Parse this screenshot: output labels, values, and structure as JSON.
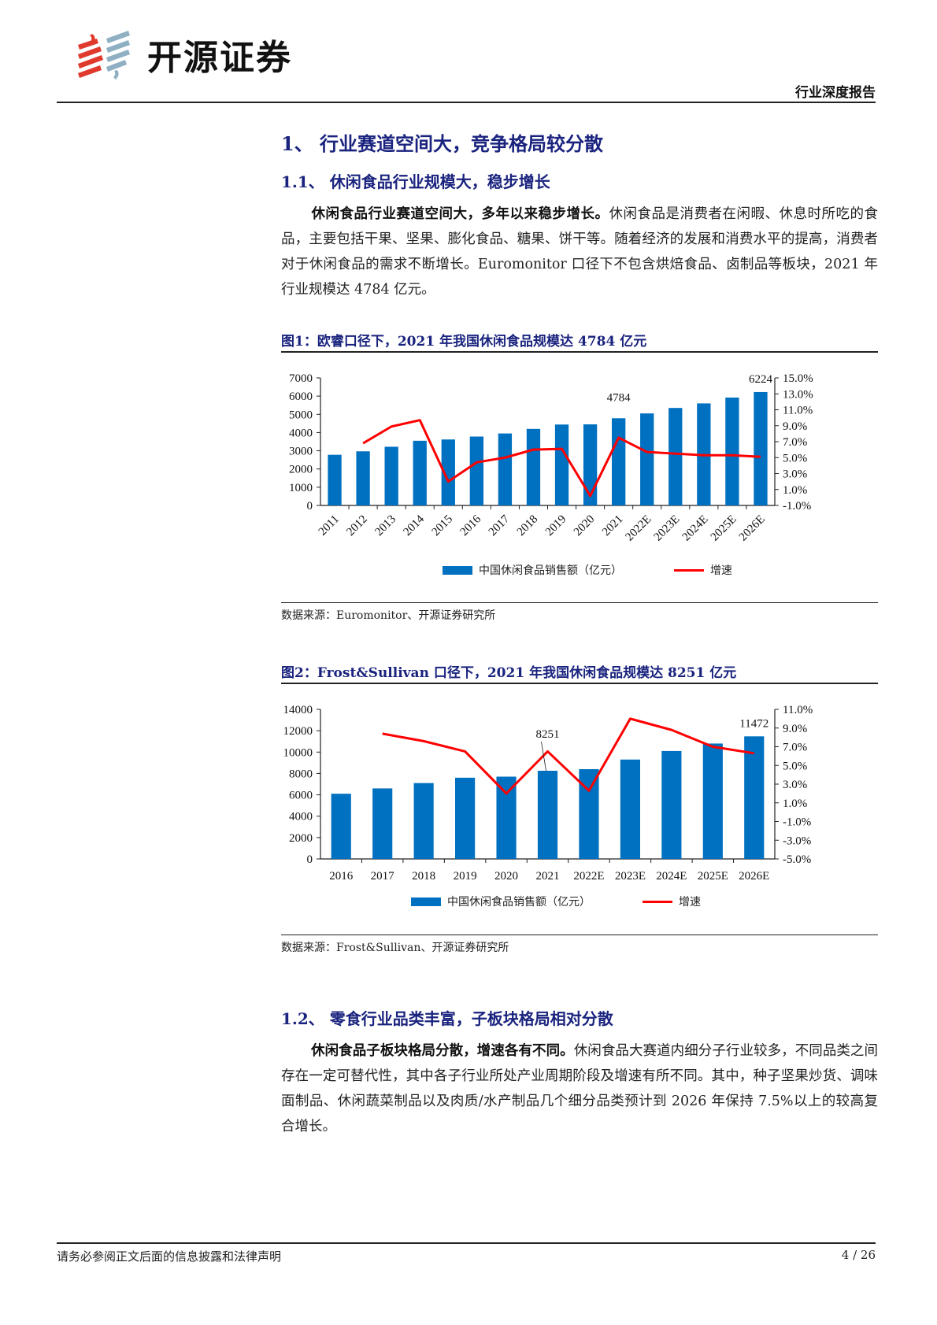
{
  "header": {
    "brand_name": "开源证券",
    "report_type": "行业深度报告",
    "logo_colors": {
      "red": "#e03a2e",
      "blue": "#8fb0c3"
    }
  },
  "section1": {
    "title": "1、 行业赛道空间大，竞争格局较分散",
    "sub1": {
      "title": "1.1、 休闲食品行业规模大，稳步增长",
      "lead_bold": "休闲食品行业赛道空间大，多年以来稳步增长。",
      "body": "休闲食品是消费者在闲暇、休息时所吃的食品，主要包括干果、坚果、膨化食品、糖果、饼干等。随着经济的发展和消费水平的提高，消费者对于休闲食品的需求不断增长。Euromonitor 口径下不包含烘焙食品、卤制品等板块，2021 年行业规模达 4784 亿元。"
    },
    "figure1": {
      "title": "图1：欧睿口径下，2021 年我国休闲食品规模达 4784 亿元",
      "source": "数据来源：Euromonitor、开源证券研究所",
      "legend_bar": "中国休闲食品销售额（亿元）",
      "legend_line": "增速"
    },
    "figure2": {
      "title": "图2：Frost&Sullivan 口径下，2021 年我国休闲食品规模达 8251 亿元",
      "source": "数据来源：Frost&Sullivan、开源证券研究所",
      "legend_bar": "中国休闲食品销售额（亿元）",
      "legend_line": "增速"
    },
    "sub2": {
      "title": "1.2、 零食行业品类丰富，子板块格局相对分散",
      "lead_bold": "休闲食品子板块格局分散，增速各有不同。",
      "body": "休闲食品大赛道内细分子行业较多，不同品类之间存在一定可替代性，其中各子行业所处产业周期阶段及增速有所不同。其中，种子坚果炒货、调味面制品、休闲蔬菜制品以及肉质/水产制品几个细分品类预计到 2026 年保持 7.5%以上的较高复合增长。"
    }
  },
  "footer": {
    "disclaimer": "请务必参阅正文后面的信息披露和法律声明",
    "page": "4 / 26"
  },
  "colors": {
    "bar": "#0070c0",
    "line": "#ff0000",
    "heading": "#1a237e"
  },
  "chart_data": [
    {
      "type": "bar+line",
      "title": "图1：欧睿口径下，2021 年我国休闲食品规模达 4784 亿元",
      "categories": [
        "2011",
        "2012",
        "2013",
        "2014",
        "2015",
        "2016",
        "2017",
        "2018",
        "2019",
        "2020",
        "2021",
        "2022E",
        "2023E",
        "2024E",
        "2025E",
        "2026E"
      ],
      "series": [
        {
          "name": "中国休闲食品销售额（亿元）",
          "type": "bar",
          "axis": "left",
          "values": [
            2780,
            2970,
            3220,
            3550,
            3620,
            3780,
            3950,
            4200,
            4440,
            4450,
            4784,
            5050,
            5350,
            5600,
            5920,
            6224
          ]
        },
        {
          "name": "增速",
          "type": "line",
          "axis": "right",
          "unit": "%",
          "values": [
            null,
            6.8,
            8.9,
            9.7,
            2.0,
            4.4,
            5.0,
            6.0,
            6.1,
            0.2,
            7.5,
            5.7,
            5.5,
            5.3,
            5.3,
            5.1
          ]
        }
      ],
      "annotations": [
        {
          "category": "2021",
          "label": "4784"
        },
        {
          "category": "2026E",
          "label": "6224"
        }
      ],
      "left_axis": {
        "ticks": [
          "0",
          "1000",
          "2000",
          "3000",
          "4000",
          "5000",
          "6000",
          "7000"
        ],
        "range": [
          0,
          7000
        ]
      },
      "right_axis": {
        "ticks": [
          "-1.0%",
          "1.0%",
          "3.0%",
          "5.0%",
          "7.0%",
          "9.0%",
          "11.0%",
          "13.0%",
          "15.0%"
        ],
        "range": [
          -1,
          15
        ]
      },
      "xlabel_rotation": -45,
      "legend_position": "bottom",
      "grid": false
    },
    {
      "type": "bar+line",
      "title": "图2：Frost&Sullivan 口径下，2021 年我国休闲食品规模达 8251 亿元",
      "categories": [
        "2016",
        "2017",
        "2018",
        "2019",
        "2020",
        "2021",
        "2022E",
        "2023E",
        "2024E",
        "2025E",
        "2026E"
      ],
      "series": [
        {
          "name": "中国休闲食品销售额（亿元）",
          "type": "bar",
          "axis": "left",
          "values": [
            6100,
            6600,
            7100,
            7600,
            7700,
            8251,
            8400,
            9300,
            10100,
            10800,
            11472
          ]
        },
        {
          "name": "增速",
          "type": "line",
          "axis": "right",
          "unit": "%",
          "values": [
            null,
            8.4,
            7.6,
            6.5,
            2.0,
            6.5,
            2.3,
            10.0,
            8.8,
            7.0,
            6.3
          ]
        }
      ],
      "annotations": [
        {
          "category": "2021",
          "label": "8251"
        },
        {
          "category": "2026E",
          "label": "11472"
        }
      ],
      "left_axis": {
        "ticks": [
          "0",
          "2000",
          "4000",
          "6000",
          "8000",
          "10000",
          "12000",
          "14000"
        ],
        "range": [
          0,
          14000
        ]
      },
      "right_axis": {
        "ticks": [
          "-5.0%",
          "-3.0%",
          "-1.0%",
          "1.0%",
          "3.0%",
          "5.0%",
          "7.0%",
          "9.0%",
          "11.0%"
        ],
        "range": [
          -5,
          11
        ]
      },
      "legend_position": "bottom",
      "grid": false
    }
  ]
}
